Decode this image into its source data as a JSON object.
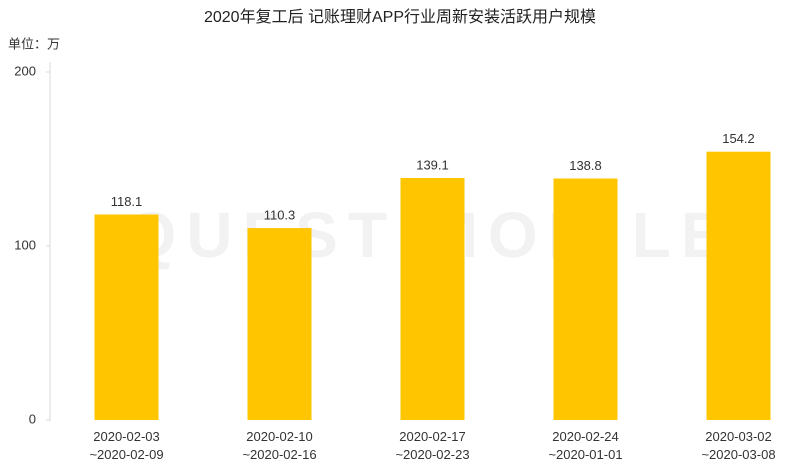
{
  "chart_data": {
    "type": "bar",
    "title": "2020年复工后 记账理财APP行业周新安装活跃用户规模",
    "y_unit": "单位：万",
    "watermark": "QUEST MOBILE",
    "categories": [
      [
        "2020-02-03",
        "~2020-02-09"
      ],
      [
        "2020-02-10",
        "~2020-02-16"
      ],
      [
        "2020-02-17",
        "~2020-02-23"
      ],
      [
        "2020-02-24",
        "~2020-01-01"
      ],
      [
        "2020-03-02",
        "~2020-03-08"
      ]
    ],
    "values": [
      118.1,
      110.3,
      139.1,
      138.8,
      154.2
    ],
    "color": "#ffc600",
    "ylim": [
      0,
      200
    ],
    "yticks": [
      0,
      100,
      200
    ],
    "grid": false
  }
}
